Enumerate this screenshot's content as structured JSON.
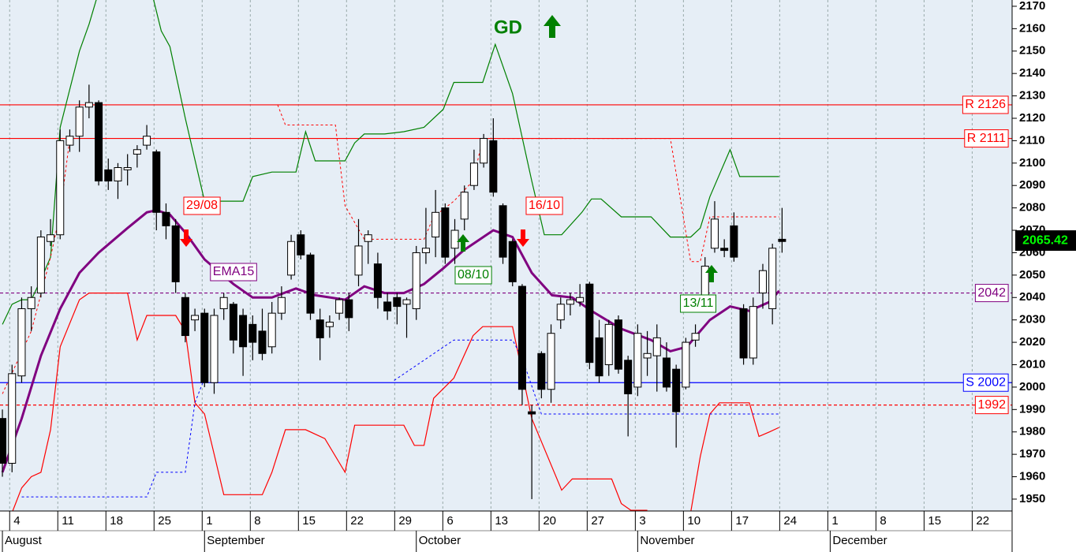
{
  "chart_data": {
    "type": "candlestick",
    "xlim": [
      -0.25,
      104.9
    ],
    "ylim": [
      1944.7,
      2172.8
    ],
    "yticks": [
      1950,
      1960,
      1970,
      1980,
      1990,
      2000,
      2010,
      2020,
      2030,
      2040,
      2050,
      2060,
      2070,
      2080,
      2090,
      2100,
      2110,
      2120,
      2130,
      2140,
      2150,
      2160,
      2170
    ],
    "xticks": [
      {
        "value": 1,
        "label": "4"
      },
      {
        "value": 6,
        "label": "11"
      },
      {
        "value": 11,
        "label": "18"
      },
      {
        "value": 16,
        "label": "25"
      },
      {
        "value": 21,
        "label": "1"
      },
      {
        "value": 26,
        "label": "8"
      },
      {
        "value": 31,
        "label": "15"
      },
      {
        "value": 36,
        "label": "22"
      },
      {
        "value": 41,
        "label": "29"
      },
      {
        "value": 46,
        "label": "6"
      },
      {
        "value": 51,
        "label": "13"
      },
      {
        "value": 56,
        "label": "20"
      },
      {
        "value": 61,
        "label": "27"
      },
      {
        "value": 66,
        "label": "3"
      },
      {
        "value": 71,
        "label": "10"
      },
      {
        "value": 76,
        "label": "17"
      },
      {
        "value": 81,
        "label": "24"
      },
      {
        "value": 86,
        "label": "1"
      },
      {
        "value": 91,
        "label": "8"
      },
      {
        "value": 96,
        "label": "15"
      },
      {
        "value": 101,
        "label": "22"
      }
    ],
    "months": [
      {
        "value": 0,
        "label": "August"
      },
      {
        "value": 21,
        "label": "September"
      },
      {
        "value": 43,
        "label": "October"
      },
      {
        "value": 66,
        "label": "November"
      },
      {
        "value": 86,
        "label": "December"
      }
    ],
    "grid_x": true,
    "open": [
      1986,
      1966,
      2005,
      2035,
      2042,
      2065,
      2068,
      2108,
      2112,
      2125,
      2127,
      2097,
      2092,
      2097,
      2104,
      2108,
      2105,
      2078,
      2072,
      2040,
      2030,
      2033,
      2002,
      2035,
      2037,
      2032,
      2028,
      2025,
      2018,
      2033,
      2050,
      2068,
      2059,
      2030,
      2027,
      2033,
      2039,
      2050,
      2065,
      2055,
      2038,
      2040,
      2037,
      2035,
      2060,
      2067,
      2080,
      2062,
      2075,
      2090,
      2100,
      2110,
      2081,
      2065,
      2045,
      1989,
      2015,
      1999,
      2030,
      2037,
      2038,
      2046,
      2022,
      2010,
      2030,
      2012,
      2000,
      2013,
      2014,
      2013,
      2008,
      2000,
      2021,
      2041,
      2062,
      2062,
      2072,
      2035,
      2013,
      2042,
      2035,
      2066
    ],
    "high": [
      1990,
      2010,
      2040,
      2045,
      2070,
      2075,
      2115,
      2115,
      2128,
      2135,
      2128,
      2102,
      2100,
      2104,
      2108,
      2117,
      2106,
      2082,
      2075,
      2042,
      2035,
      2035,
      2035,
      2042,
      2038,
      2035,
      2032,
      2035,
      2038,
      2045,
      2068,
      2070,
      2060,
      2035,
      2032,
      2040,
      2042,
      2075,
      2070,
      2060,
      2042,
      2042,
      2040,
      2063,
      2080,
      2088,
      2082,
      2075,
      2090,
      2106,
      2113,
      2120,
      2082,
      2066,
      2046,
      1992,
      2016,
      2028,
      2040,
      2042,
      2046,
      2047,
      2030,
      2030,
      2032,
      2014,
      2028,
      2025,
      2028,
      2020,
      2010,
      2022,
      2028,
      2058,
      2083,
      2066,
      2078,
      2037,
      2040,
      2055,
      2064,
      2080
    ],
    "low": [
      1960,
      1962,
      2002,
      2025,
      2040,
      2063,
      2066,
      2105,
      2105,
      2120,
      2090,
      2088,
      2084,
      2090,
      2098,
      2106,
      2070,
      2066,
      2042,
      2020,
      2025,
      2000,
      1997,
      2030,
      2015,
      2005,
      2012,
      2012,
      2015,
      2030,
      2048,
      2057,
      2030,
      2012,
      2022,
      2030,
      2025,
      2045,
      2055,
      2035,
      2030,
      2028,
      2022,
      2030,
      2055,
      2058,
      2055,
      2055,
      2070,
      2088,
      2098,
      2085,
      2055,
      2045,
      1992,
      1950,
      1995,
      1993,
      2026,
      2032,
      2036,
      2008,
      2002,
      2005,
      2006,
      1978,
      1996,
      2005,
      1998,
      1998,
      1973,
      1999,
      2018,
      2040,
      2060,
      2058,
      2056,
      2010,
      2010,
      2035,
      2028,
      2060
    ],
    "close": [
      1966,
      2006,
      2035,
      2040,
      2067,
      2068,
      2110,
      2112,
      2125,
      2127,
      2092,
      2092,
      2098,
      2098,
      2106,
      2112,
      2078,
      2072,
      2047,
      2023,
      2032,
      2002,
      2032,
      2040,
      2021,
      2018,
      2020,
      2015,
      2033,
      2040,
      2065,
      2059,
      2033,
      2022,
      2029,
      2039,
      2031,
      2063,
      2068,
      2040,
      2034,
      2036,
      2039,
      2060,
      2062,
      2078,
      2058,
      2070,
      2087,
      2100,
      2111,
      2087,
      2058,
      2047,
      1999,
      1988,
      1999,
      2024,
      2037,
      2039,
      2040,
      2011,
      2005,
      2028,
      2008,
      1997,
      2024,
      2015,
      2022,
      2000,
      1989,
      2020,
      2024,
      2054,
      2075,
      2061,
      2058,
      2013,
      2036,
      2052,
      2062,
      2065
    ],
    "lines": [
      {
        "name": "EMA15",
        "color": "#800080",
        "width": 3,
        "dash": false,
        "x": [
          0,
          2,
          4,
          6,
          8,
          10,
          13,
          15,
          16,
          17.4,
          19,
          21,
          24,
          26,
          28,
          30.5,
          32.5,
          35.6,
          37.6,
          39.7,
          41.7,
          43.8,
          45.8,
          47.9,
          51,
          53,
          55,
          57.1,
          59.2,
          61.2,
          64.3,
          67.4,
          69.4,
          71.1,
          73.5,
          75.6,
          77.6,
          79.7,
          80.7
        ],
        "values": [
          1962,
          1986,
          2014,
          2035,
          2051,
          2060,
          2071,
          2078,
          2079,
          2077,
          2069,
          2057,
          2046,
          2040,
          2040,
          2044,
          2041,
          2039,
          2045,
          2042,
          2042,
          2046,
          2053,
          2061,
          2070,
          2067,
          2051,
          2041,
          2040,
          2034,
          2026,
          2021,
          2016,
          2018,
          2030,
          2036,
          2034,
          2038,
          2043
        ]
      },
      {
        "color": "#008000",
        "width": 1.2,
        "dash": false,
        "x": [
          0,
          1,
          2,
          3,
          4,
          5,
          6,
          8,
          9,
          9.9,
          null,
          15.7,
          16.5,
          17.4,
          19,
          21,
          23,
          25,
          26,
          28,
          30.5,
          31.5,
          32.5,
          34.6,
          35.6,
          36.6,
          37.6,
          39.7,
          41.7,
          43.8,
          45.8,
          46.9,
          49.9,
          51.2,
          53,
          55,
          56.3,
          58.1,
          60.2,
          61.2,
          62.2,
          64.3,
          67.4,
          69.4,
          71.5,
          72.5,
          73.5,
          75.6,
          76.6,
          80.7
        ],
        "values": [
          2028,
          2037,
          2039,
          2039,
          2048,
          2058,
          2116,
          2150,
          2162,
          2175,
          null,
          2173,
          2159,
          2152,
          2120,
          2083,
          2083,
          2083,
          2094,
          2096,
          2096,
          2114,
          2101,
          2101,
          2101,
          2109,
          2113,
          2113,
          2114,
          2116,
          2124,
          2136,
          2136,
          2153,
          2131,
          2092,
          2068,
          2068,
          2078,
          2084,
          2084,
          2076,
          2076,
          2067,
          2067,
          2071,
          2085,
          2106,
          2094,
          2094
        ]
      },
      {
        "color": "#ff0000",
        "width": 1.2,
        "dash": false,
        "x": [
          1,
          2,
          3,
          4,
          5,
          6,
          8,
          9,
          13,
          14,
          15,
          18,
          19,
          20,
          21,
          23,
          27,
          28,
          29.4,
          31.5,
          33.5,
          35.6,
          36.6,
          37.6,
          41.7,
          42.8,
          43.8,
          44.8,
          46.9,
          48.9,
          49.9,
          53,
          55,
          58.1,
          59.2,
          63.3,
          64.3,
          65.3,
          67,
          null,
          71.5,
          72.5,
          73.5,
          74.5,
          77.6,
          78.6,
          79.7,
          80.7
        ],
        "values": [
          1944,
          1955,
          1960,
          1962,
          1981,
          2018,
          2039,
          2042,
          2042,
          2021,
          2032,
          2032,
          2025,
          1993,
          1988,
          1952,
          1952,
          1962,
          1981,
          1981,
          1977,
          1962,
          1983,
          1983,
          1983,
          1974,
          1974,
          1995,
          2004,
          2023,
          2027,
          2027,
          1986,
          1954,
          1959,
          1959,
          1948,
          1945,
          1945,
          null,
          1944,
          1969,
          1988,
          1993,
          1993,
          1978,
          1980,
          1982
        ]
      },
      {
        "color": "#ff0000",
        "width": 1,
        "dash": true,
        "x": [
          0,
          3,
          5,
          6,
          7,
          null,
          28.6,
          29.4,
          34.6,
          35.6,
          37.6,
          43.8,
          44.8,
          46.9,
          48.9,
          49.9,
          69.4,
          70.4,
          71.5,
          72.5,
          73.5,
          80.7
        ],
        "values": [
          1997,
          2025,
          2058,
          2078,
          2111,
          null,
          2126,
          2117,
          2117,
          2081,
          2066,
          2066,
          2076,
          2083,
          2092,
          2111,
          2111,
          2085,
          2056,
          2056,
          2076,
          2076
        ]
      },
      {
        "color": "#0000ff",
        "width": 1,
        "dash": true,
        "x": [
          2,
          15,
          16,
          19,
          20,
          21,
          null,
          40.7,
          46.9,
          53,
          54,
          56,
          80.7
        ],
        "values": [
          1951,
          1951,
          1962,
          1962,
          1993,
          2004,
          null,
          2003,
          2021,
          2021,
          2013,
          1988,
          1988
        ]
      }
    ],
    "levels": [
      {
        "label": "R 2126",
        "value": 2126,
        "color": "#ff0000",
        "dash": false
      },
      {
        "label": "R 2111",
        "value": 2111,
        "color": "#ff0000",
        "dash": false
      },
      {
        "label": "S 2002",
        "value": 2002,
        "color": "#0000ff",
        "dash": false
      },
      {
        "value": 2042,
        "color": "#800080",
        "dash": true
      },
      {
        "value": 1992,
        "color": "#ff0000",
        "dash": true
      }
    ],
    "annotations": [
      {
        "text": "29/08",
        "color": "#ff0000"
      },
      {
        "text": "16/10",
        "color": "#ff0000"
      },
      {
        "text": "08/10",
        "color": "#008000"
      },
      {
        "text": "13/11",
        "color": "#008000"
      },
      {
        "text": "GD",
        "color": "#008000"
      }
    ],
    "last": {
      "value": 2065.42,
      "color": "#00ff00"
    }
  }
}
